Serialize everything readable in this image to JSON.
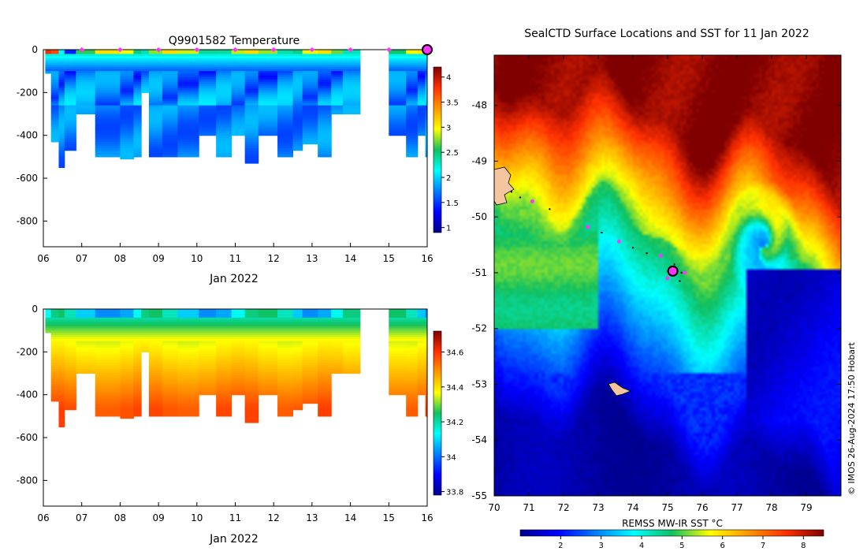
{
  "chart_data": [
    {
      "type": "heatmap",
      "name": "temperature-section",
      "title": "Q9901582  Temperature",
      "xlabel": "Jan 2022",
      "ylabel": "",
      "x_ticks": [
        "06",
        "07",
        "08",
        "09",
        "10",
        "11",
        "12",
        "13",
        "14",
        "15",
        "16"
      ],
      "x_range": [
        6,
        16
      ],
      "y_ticks": [
        0,
        -200,
        -400,
        -600,
        -800
      ],
      "y_range": [
        -920,
        0
      ],
      "colorbar_ticks": [
        1,
        1.5,
        2,
        2.5,
        3,
        3.5,
        4
      ],
      "colorbar_range": [
        0.9,
        4.2
      ],
      "surface_markers_day": [
        7,
        8,
        9,
        10,
        11,
        12,
        13,
        14,
        15
      ],
      "latest_marker_day": 16,
      "profiles": [
        {
          "day": 6.05,
          "depth": 110
        },
        {
          "day": 6.2,
          "depth": 430
        },
        {
          "day": 6.4,
          "depth": 545
        },
        {
          "day": 6.55,
          "depth": 465
        },
        {
          "day": 6.85,
          "depth": 300
        },
        {
          "day": 7.35,
          "depth": 500
        },
        {
          "day": 8.0,
          "depth": 510
        },
        {
          "day": 8.35,
          "depth": 500
        },
        {
          "day": 8.55,
          "depth": 200
        },
        {
          "day": 8.75,
          "depth": 500
        },
        {
          "day": 9.1,
          "depth": 500
        },
        {
          "day": 9.5,
          "depth": 500
        },
        {
          "day": 10.05,
          "depth": 400
        },
        {
          "day": 10.5,
          "depth": 500
        },
        {
          "day": 10.9,
          "depth": 400
        },
        {
          "day": 11.25,
          "depth": 530
        },
        {
          "day": 11.6,
          "depth": 400
        },
        {
          "day": 12.1,
          "depth": 500
        },
        {
          "day": 12.5,
          "depth": 465
        },
        {
          "day": 12.75,
          "depth": 440
        },
        {
          "day": 13.15,
          "depth": 500
        },
        {
          "day": 13.5,
          "depth": 300
        },
        {
          "day": 13.8,
          "depth": 300
        },
        {
          "day": 15.0,
          "depth": 400
        },
        {
          "day": 15.45,
          "depth": 500
        },
        {
          "day": 15.75,
          "depth": 400
        },
        {
          "day": 15.95,
          "depth": 500
        }
      ]
    },
    {
      "type": "heatmap",
      "name": "salinity-section",
      "title": "",
      "xlabel": "Jan 2022",
      "x_ticks": [
        "06",
        "07",
        "08",
        "09",
        "10",
        "11",
        "12",
        "13",
        "14",
        "15",
        "16"
      ],
      "x_range": [
        6,
        16
      ],
      "y_ticks": [
        0,
        -200,
        -400,
        -600,
        -800
      ],
      "y_range": [
        -920,
        0
      ],
      "colorbar_ticks": [
        33.8,
        34,
        34.2,
        34.4,
        34.6
      ],
      "colorbar_range": [
        33.78,
        34.72
      ]
    },
    {
      "type": "heatmap",
      "name": "sst-map",
      "title": "SealCTD Surface Locations and SST for 11 Jan 2022",
      "x_ticks": [
        70,
        71,
        72,
        73,
        74,
        75,
        76,
        77,
        78,
        79
      ],
      "x_range": [
        70,
        80
      ],
      "y_ticks": [
        -48,
        -49,
        -50,
        -51,
        -52,
        -53,
        -54,
        -55
      ],
      "y_range": [
        -55,
        -47.1
      ],
      "colorbar_label": "REMSS MW-IR SST °C",
      "colorbar_ticks": [
        2,
        3,
        4,
        5,
        6,
        7,
        8
      ],
      "colorbar_range": [
        1,
        8.5
      ],
      "track_points": [
        {
          "lon": 70.5,
          "lat": -49.55
        },
        {
          "lon": 70.75,
          "lat": -49.65
        },
        {
          "lon": 71.1,
          "lat": -49.72
        },
        {
          "lon": 71.6,
          "lat": -49.86
        },
        {
          "lon": 72.7,
          "lat": -50.18
        },
        {
          "lon": 73.1,
          "lat": -50.28
        },
        {
          "lon": 73.6,
          "lat": -50.44
        },
        {
          "lon": 74.0,
          "lat": -50.55
        },
        {
          "lon": 74.4,
          "lat": -50.65
        },
        {
          "lon": 74.8,
          "lat": -50.7
        },
        {
          "lon": 75.2,
          "lat": -50.85
        },
        {
          "lon": 75.0,
          "lat": -51.1
        },
        {
          "lon": 75.4,
          "lat": -51.0
        },
        {
          "lon": 75.35,
          "lat": -51.15
        }
      ],
      "magenta_points": [
        {
          "lon": 71.1,
          "lat": -49.72
        },
        {
          "lon": 72.7,
          "lat": -50.18
        },
        {
          "lon": 73.6,
          "lat": -50.44
        },
        {
          "lon": 74.8,
          "lat": -50.7
        },
        {
          "lon": 75.0,
          "lat": -51.1
        },
        {
          "lon": 75.5,
          "lat": -51.0
        }
      ],
      "current_position": {
        "lon": 75.15,
        "lat": -50.97
      }
    }
  ],
  "credit": "© IMOS 26-Aug-2024 17:50 Hobart",
  "colors": {
    "marker": "#ff33ff",
    "land": "#f4c6a0",
    "frame": "#000000"
  }
}
